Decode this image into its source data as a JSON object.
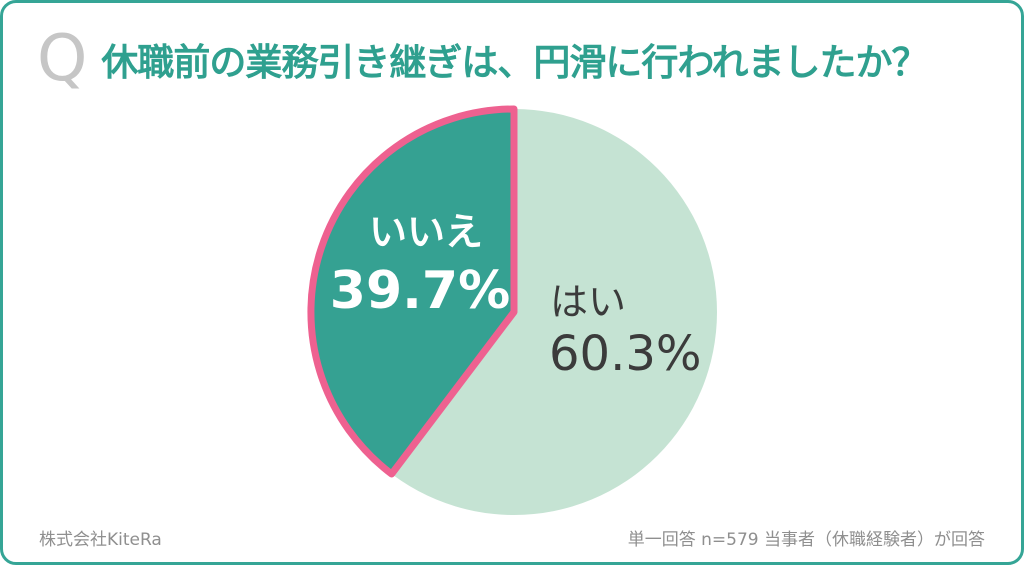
{
  "header": {
    "q_mark": "Q",
    "q_color": "#c6c6c6",
    "title": "休職前の業務引き継ぎは、円滑に行われましたか？",
    "title_color": "#2fa08f"
  },
  "card": {
    "border_color": "#35a596",
    "background": "#ffffff"
  },
  "chart_data": {
    "type": "pie",
    "title": "休職前の業務引き継ぎは、円滑に行われましたか？",
    "start_angle_deg": 0,
    "highlight_slice_direction": "counterclockwise-from-top",
    "legend_position": "inside-slices",
    "slices": [
      {
        "label": "はい",
        "value": 60.3,
        "display": "60.3%",
        "color": "#c5e3d3",
        "label_color": "#3b3b3b"
      },
      {
        "label": "いいえ",
        "value": 39.7,
        "display": "39.7%",
        "color": "#35a192",
        "border_color": "#ee6190",
        "label_color": "#ffffff"
      }
    ]
  },
  "footer": {
    "company": "株式会社KiteRa",
    "note": "単一回答 n=579 当事者（休職経験者）が回答",
    "text_color": "#8f8f8f"
  }
}
